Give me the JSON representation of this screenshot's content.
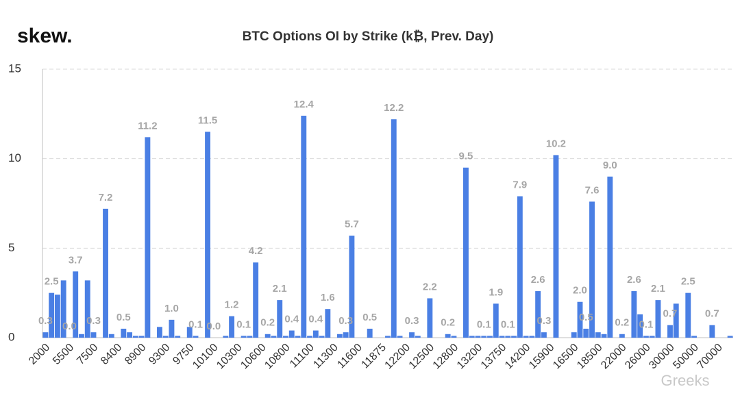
{
  "brand": "skew.",
  "watermark": "Greeks",
  "chart_data": {
    "type": "bar",
    "title": "BTC Options OI by Strike (k₿, Prev. Day)",
    "categories": [
      "2000",
      null,
      null,
      null,
      "5500",
      null,
      null,
      null,
      "7500",
      null,
      null,
      null,
      "8400",
      null,
      null,
      null,
      "8900",
      null,
      null,
      null,
      "9300",
      null,
      null,
      null,
      "9750",
      null,
      null,
      null,
      "10100",
      null,
      null,
      null,
      "10300",
      null,
      null,
      null,
      "10600",
      null,
      null,
      null,
      "10800",
      null,
      null,
      null,
      "11100",
      null,
      null,
      null,
      "11300",
      null,
      null,
      null,
      "11600",
      null,
      null,
      null,
      "11875",
      null,
      null,
      null,
      "12200",
      null,
      null,
      null,
      "12500",
      null,
      null,
      null,
      "12800",
      null,
      null,
      null,
      "13200",
      null,
      null,
      null,
      "13750",
      null,
      null,
      null,
      "14200",
      null,
      null,
      null,
      "15900",
      null,
      null,
      null,
      "16500",
      null,
      null,
      null,
      "18500",
      null,
      null,
      null,
      "22000",
      null,
      null,
      null,
      "26000",
      null,
      null,
      null,
      "30000",
      null,
      null,
      null,
      "50000",
      null,
      null,
      null,
      "70000",
      null,
      null
    ],
    "values": [
      0.3,
      2.5,
      2.4,
      3.2,
      0.0,
      3.7,
      0.2,
      3.2,
      0.3,
      0,
      7.2,
      0.2,
      0,
      0.5,
      0.3,
      0.1,
      0.1,
      11.2,
      0,
      0.6,
      0.1,
      1.0,
      0.1,
      0,
      0.6,
      0.1,
      0,
      11.5,
      0.0,
      0,
      0.1,
      1.2,
      0,
      0.1,
      0.1,
      4.2,
      0,
      0.2,
      0.1,
      2.1,
      0.1,
      0.4,
      0.1,
      12.4,
      0.1,
      0.4,
      0.1,
      1.6,
      0,
      0.2,
      0.3,
      5.7,
      0,
      0,
      0.5,
      0,
      0,
      0.1,
      12.2,
      0.1,
      0,
      0.3,
      0.1,
      0,
      2.2,
      0,
      0,
      0.2,
      0.1,
      0,
      9.5,
      0.1,
      0.1,
      0.1,
      0.1,
      1.9,
      0.1,
      0.1,
      0.1,
      7.9,
      0.1,
      0.1,
      2.6,
      0.3,
      0,
      10.2,
      0,
      0,
      0.3,
      2.0,
      0.5,
      7.6,
      0.3,
      0.2,
      9.0,
      0,
      0.2,
      0,
      2.6,
      1.3,
      0.1,
      0.1,
      2.1,
      0,
      0.7,
      1.9,
      0,
      2.5,
      0.1,
      0,
      0,
      0.7,
      0,
      0,
      0.1
    ],
    "value_labels": [
      "0.3",
      "2.5",
      null,
      null,
      "0.0",
      "3.7",
      null,
      null,
      "0.3",
      null,
      "7.2",
      null,
      null,
      "0.5",
      null,
      null,
      null,
      "11.2",
      null,
      null,
      null,
      "1.0",
      null,
      null,
      null,
      "0.1",
      null,
      "11.5",
      "0.0",
      null,
      null,
      "1.2",
      null,
      "0.1",
      null,
      "4.2",
      null,
      "0.2",
      null,
      "2.1",
      null,
      "0.4",
      null,
      "12.4",
      null,
      "0.4",
      null,
      "1.6",
      null,
      null,
      "0.3",
      "5.7",
      null,
      null,
      "0.5",
      null,
      null,
      null,
      "12.2",
      null,
      null,
      "0.3",
      null,
      null,
      "2.2",
      null,
      null,
      "0.2",
      null,
      null,
      "9.5",
      null,
      null,
      "0.1",
      null,
      "1.9",
      null,
      "0.1",
      null,
      "7.9",
      null,
      null,
      "2.6",
      "0.3",
      null,
      "10.2",
      null,
      null,
      null,
      "2.0",
      "0.5",
      "7.6",
      null,
      null,
      "9.0",
      null,
      "0.2",
      null,
      "2.6",
      null,
      "0.1",
      null,
      "2.1",
      null,
      "0.7",
      null,
      null,
      "2.5",
      null,
      null,
      null,
      "0.7",
      null,
      null,
      null
    ],
    "color": "#4a7fe4",
    "ylim": [
      0,
      15
    ],
    "yticks": [
      0,
      5,
      10,
      15
    ],
    "grid": true
  }
}
